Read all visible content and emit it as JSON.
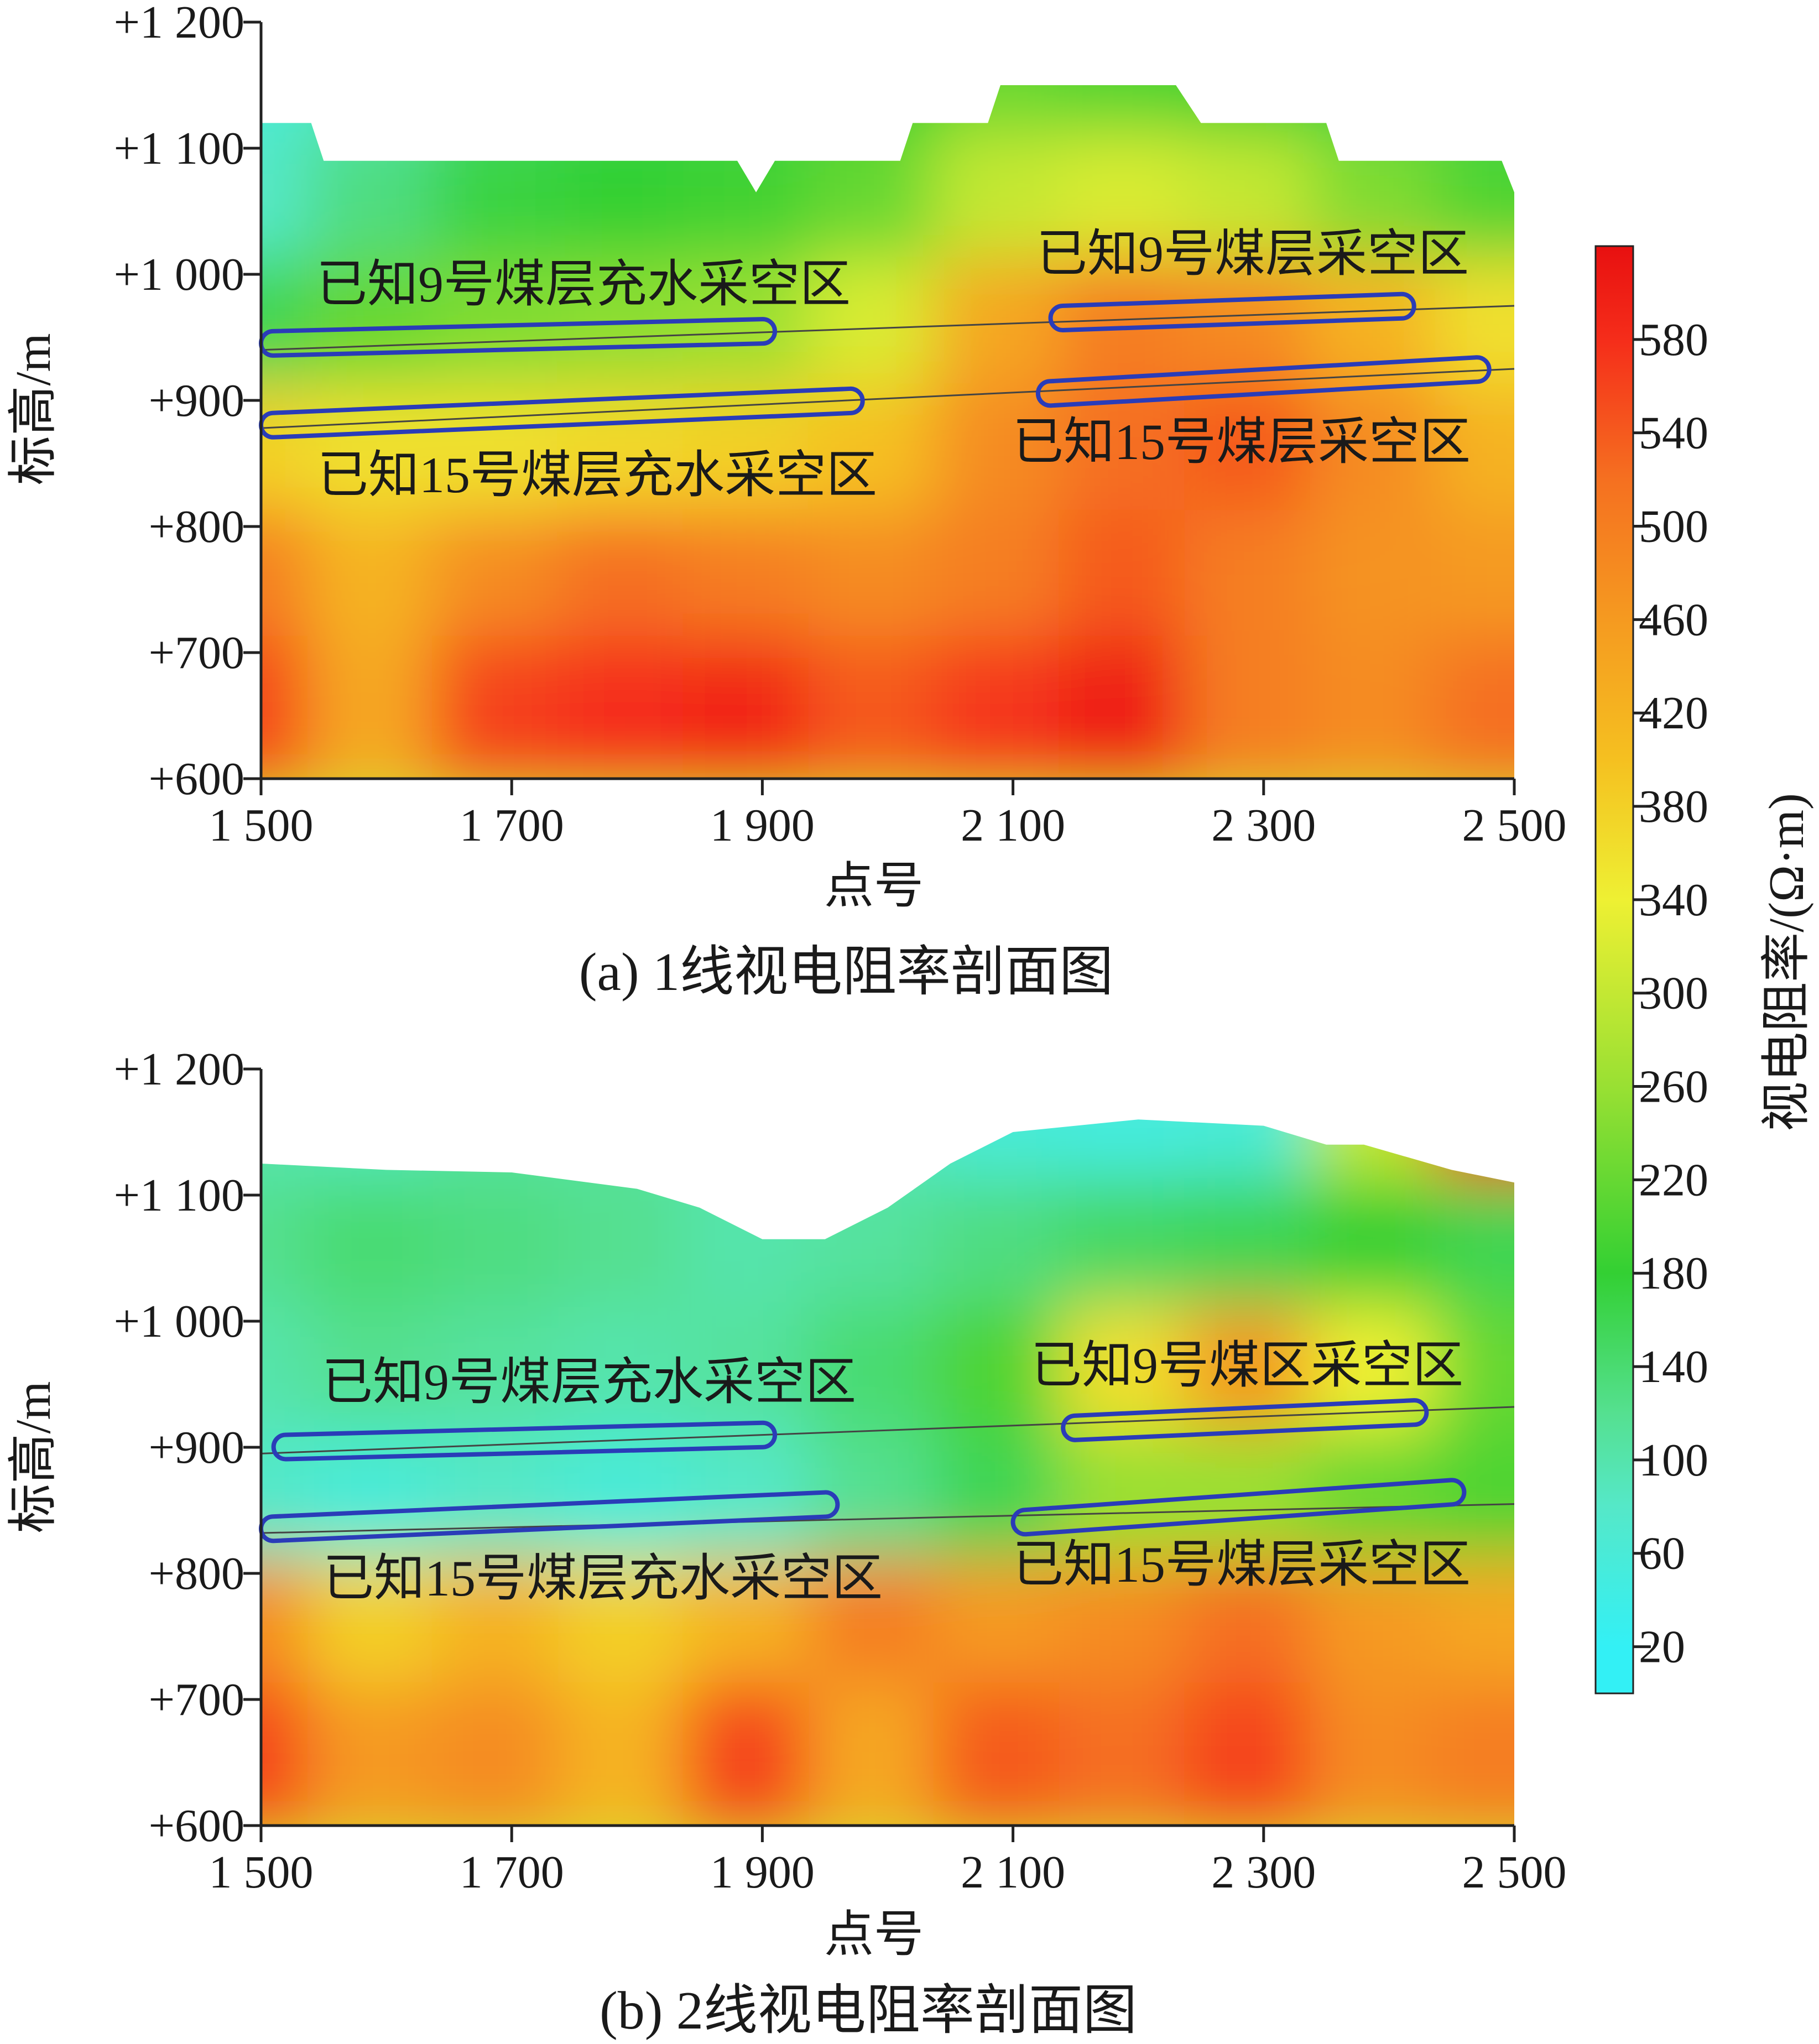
{
  "chart_data": [
    {
      "type": "heatmap",
      "caption": "(a)  1线视电阻率剖面图",
      "xlabel": "点号",
      "ylabel": "标高/m",
      "xlim": [
        1500,
        2500
      ],
      "ylim": [
        600,
        1200
      ],
      "xticks": [
        1500,
        1700,
        1900,
        2100,
        2300,
        2500
      ],
      "xtick_labels": [
        "1 500",
        "1 700",
        "1 900",
        "2 100",
        "2 300",
        "2 500"
      ],
      "yticks": [
        1200,
        1100,
        1000,
        900,
        800,
        700,
        600
      ],
      "ytick_labels": [
        "+1 200",
        "+1 100",
        "+1 000",
        "+900",
        "+800",
        "+700",
        "+600"
      ],
      "surface": [
        [
          1500,
          1120
        ],
        [
          1540,
          1120
        ],
        [
          1550,
          1090
        ],
        [
          1880,
          1090
        ],
        [
          1895,
          1065
        ],
        [
          1910,
          1090
        ],
        [
          2010,
          1090
        ],
        [
          2020,
          1120
        ],
        [
          2080,
          1120
        ],
        [
          2090,
          1150
        ],
        [
          2230,
          1150
        ],
        [
          2250,
          1120
        ],
        [
          2350,
          1120
        ],
        [
          2360,
          1090
        ],
        [
          2490,
          1090
        ],
        [
          2500,
          1065
        ]
      ],
      "field_grid": {
        "x": [
          1500,
          1600,
          1700,
          1800,
          1900,
          2000,
          2100,
          2200,
          2300,
          2400,
          2500
        ],
        "y": [
          1150,
          1050,
          950,
          850,
          750,
          650
        ],
        "values": [
          [
            60,
            90,
            140,
            160,
            160,
            180,
            220,
            200,
            180,
            170,
            160
          ],
          [
            80,
            130,
            170,
            180,
            190,
            220,
            300,
            320,
            300,
            240,
            200
          ],
          [
            160,
            220,
            240,
            250,
            260,
            320,
            440,
            500,
            480,
            420,
            360
          ],
          [
            380,
            360,
            360,
            370,
            380,
            400,
            480,
            520,
            540,
            480,
            420
          ],
          [
            500,
            420,
            480,
            520,
            500,
            480,
            500,
            540,
            500,
            470,
            460
          ],
          [
            560,
            440,
            560,
            580,
            590,
            540,
            570,
            600,
            500,
            480,
            520
          ]
        ]
      },
      "goafs": [
        {
          "label": "已知9号煤层充水采空区",
          "seam": "9",
          "x": [
            1500,
            1910
          ],
          "y": [
            945,
            955
          ]
        },
        {
          "label": "已知15号煤层充水采空区",
          "seam": "15",
          "x": [
            1500,
            1980
          ],
          "y": [
            880,
            900
          ]
        },
        {
          "label": "已知9号煤层采空区",
          "seam": "9",
          "x": [
            2130,
            2420
          ],
          "y": [
            965,
            975
          ]
        },
        {
          "label": "已知15号煤层采空区",
          "seam": "15",
          "x": [
            2120,
            2480
          ],
          "y": [
            905,
            925
          ]
        }
      ],
      "seam_lines": [
        {
          "seam": "9",
          "x": [
            1500,
            2500
          ],
          "y": [
            940,
            975
          ]
        },
        {
          "seam": "15",
          "x": [
            1500,
            2500
          ],
          "y": [
            878,
            925
          ]
        }
      ]
    },
    {
      "type": "heatmap",
      "caption": "(b)  2线视电阻率剖面图",
      "xlabel": "点号",
      "ylabel": "标高/m",
      "xlim": [
        1500,
        2500
      ],
      "ylim": [
        600,
        1200
      ],
      "xticks": [
        1500,
        1700,
        1900,
        2100,
        2300,
        2500
      ],
      "xtick_labels": [
        "1 500",
        "1 700",
        "1 900",
        "2 100",
        "2 300",
        "2 500"
      ],
      "yticks": [
        1200,
        1100,
        1000,
        900,
        800,
        700,
        600
      ],
      "ytick_labels": [
        "+1 200",
        "+1 100",
        "+1 000",
        "+900",
        "+800",
        "+700",
        "+600"
      ],
      "surface": [
        [
          1500,
          1125
        ],
        [
          1600,
          1120
        ],
        [
          1700,
          1118
        ],
        [
          1800,
          1105
        ],
        [
          1850,
          1090
        ],
        [
          1900,
          1065
        ],
        [
          1950,
          1065
        ],
        [
          2000,
          1090
        ],
        [
          2050,
          1125
        ],
        [
          2100,
          1150
        ],
        [
          2200,
          1160
        ],
        [
          2300,
          1155
        ],
        [
          2350,
          1140
        ],
        [
          2380,
          1140
        ],
        [
          2450,
          1120
        ],
        [
          2500,
          1110
        ]
      ],
      "field_grid": {
        "x": [
          1500,
          1600,
          1700,
          1800,
          1900,
          2000,
          2100,
          2200,
          2300,
          2400,
          2500
        ],
        "y": [
          1150,
          1050,
          950,
          850,
          750,
          650
        ],
        "values": [
          [
            100,
            90,
            110,
            110,
            100,
            90,
            60,
            50,
            60,
            300,
            580
          ],
          [
            120,
            140,
            130,
            120,
            100,
            110,
            130,
            150,
            160,
            180,
            160
          ],
          [
            100,
            120,
            110,
            100,
            110,
            140,
            200,
            360,
            460,
            340,
            220
          ],
          [
            80,
            60,
            80,
            60,
            80,
            120,
            160,
            260,
            260,
            220,
            200
          ],
          [
            480,
            380,
            420,
            380,
            420,
            500,
            460,
            480,
            520,
            460,
            440
          ],
          [
            560,
            460,
            480,
            420,
            560,
            440,
            540,
            520,
            560,
            480,
            500
          ]
        ]
      },
      "goafs": [
        {
          "label": "已知9号煤层充水采空区",
          "seam": "9",
          "x": [
            1510,
            1910
          ],
          "y": [
            900,
            910
          ]
        },
        {
          "label": "已知15号煤层充水采空区",
          "seam": "15",
          "x": [
            1500,
            1960
          ],
          "y": [
            835,
            855
          ]
        },
        {
          "label": "已知9号煤区采空区",
          "seam": "9",
          "x": [
            2140,
            2430
          ],
          "y": [
            915,
            928
          ]
        },
        {
          "label": "已知15号煤层采空区",
          "seam": "15",
          "x": [
            2100,
            2460
          ],
          "y": [
            840,
            865
          ]
        }
      ],
      "seam_lines": [
        {
          "seam": "9",
          "x": [
            1500,
            2500
          ],
          "y": [
            895,
            932
          ]
        },
        {
          "seam": "15",
          "x": [
            1500,
            2500
          ],
          "y": [
            832,
            855
          ]
        }
      ]
    }
  ],
  "colorbar": {
    "label": "视电阻率/(Ω·m)",
    "min": 0,
    "max": 620,
    "ticks": [
      20,
      60,
      100,
      140,
      180,
      220,
      260,
      300,
      340,
      380,
      420,
      460,
      500,
      540,
      580
    ],
    "stops": [
      {
        "v": 20,
        "c": "#33f0f5"
      },
      {
        "v": 80,
        "c": "#55e8c8"
      },
      {
        "v": 120,
        "c": "#55e090"
      },
      {
        "v": 180,
        "c": "#33d033"
      },
      {
        "v": 260,
        "c": "#99e033"
      },
      {
        "v": 340,
        "c": "#eef033"
      },
      {
        "v": 400,
        "c": "#f5c020"
      },
      {
        "v": 460,
        "c": "#f59a20"
      },
      {
        "v": 520,
        "c": "#f57020"
      },
      {
        "v": 580,
        "c": "#f52d1a"
      },
      {
        "v": 620,
        "c": "#e81010"
      }
    ]
  },
  "colors": {
    "goaf_outline": "#2a3cb8",
    "seam_line": "#444444"
  }
}
